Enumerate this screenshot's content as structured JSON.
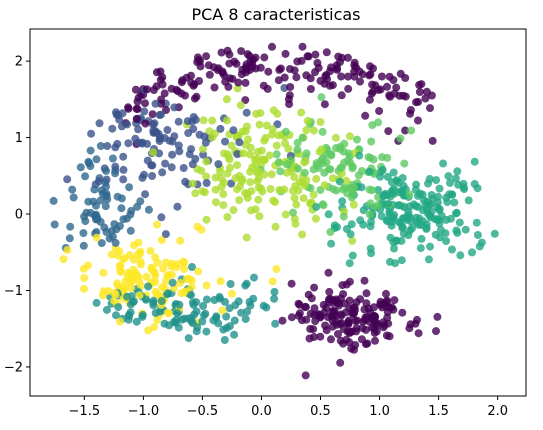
{
  "chart_data": {
    "type": "scatter",
    "title": "PCA 8 caracteristicas",
    "xlabel": "",
    "ylabel": "",
    "xlim": [
      -1.96,
      2.24
    ],
    "ylim": [
      -2.38,
      2.42
    ],
    "x_ticks": [
      -1.5,
      -1.0,
      -0.5,
      0.0,
      0.5,
      1.0,
      1.5,
      2.0
    ],
    "x_tick_labels": [
      "−1.5",
      "−1.0",
      "−0.5",
      "0.0",
      "0.5",
      "1.0",
      "1.5",
      "2.0"
    ],
    "y_ticks": [
      -2,
      -1,
      0,
      1,
      2
    ],
    "y_tick_labels": [
      "−2",
      "−1",
      "0",
      "1",
      "2"
    ],
    "grid": false,
    "legend": "none",
    "colormap": "viridis",
    "marker_alpha": 0.8,
    "clusters": [
      {
        "color": "#440154",
        "region": "top arc",
        "n": 190,
        "cx": 0.1,
        "cy": 1.55,
        "rx": 1.35,
        "ry": 0.6,
        "ang": 200
      },
      {
        "color": "#440154",
        "region": "lower right",
        "n": 160,
        "cx": 0.75,
        "cy": -1.35,
        "rx": 0.45,
        "ry": 0.35,
        "ang": 0
      },
      {
        "color": "#3b528b",
        "region": "upper left",
        "n": 110,
        "cx": -0.8,
        "cy": 0.9,
        "rx": 0.55,
        "ry": 0.65,
        "ang": 0
      },
      {
        "color": "#31688e",
        "region": "left band",
        "n": 70,
        "cx": -1.35,
        "cy": 0.05,
        "rx": 0.25,
        "ry": 0.45,
        "ang": 0
      },
      {
        "color": "#21918c",
        "region": "lower left band",
        "n": 110,
        "cx": -0.7,
        "cy": -1.25,
        "rx": 0.65,
        "ry": 0.3,
        "ang": 0
      },
      {
        "color": "#22a884",
        "region": "right",
        "n": 190,
        "cx": 1.3,
        "cy": 0.05,
        "rx": 0.55,
        "ry": 0.55,
        "ang": 0
      },
      {
        "color": "#5ec962",
        "region": "center right",
        "n": 110,
        "cx": 0.7,
        "cy": 0.6,
        "rx": 0.5,
        "ry": 0.5,
        "ang": 0
      },
      {
        "color": "#addc30",
        "region": "center",
        "n": 170,
        "cx": 0.0,
        "cy": 0.6,
        "rx": 0.55,
        "ry": 0.7,
        "ang": 0
      },
      {
        "color": "#fde725",
        "region": "lower left",
        "n": 130,
        "cx": -1.05,
        "cy": -0.85,
        "rx": 0.5,
        "ry": 0.45,
        "ang": 0
      }
    ]
  }
}
